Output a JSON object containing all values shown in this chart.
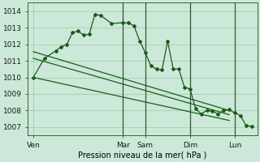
{
  "bg_color": "#cce8d8",
  "grid_color": "#99ccaa",
  "line_color": "#1a5c1a",
  "ylabel_ticks": [
    1007,
    1008,
    1009,
    1010,
    1011,
    1012,
    1013,
    1014
  ],
  "xlabel": "Pression niveau de la mer( hPa )",
  "day_labels": [
    "Ven",
    "Mar",
    "Sam",
    "Dim",
    "Lun"
  ],
  "day_positions": [
    0,
    48,
    60,
    84,
    108
  ],
  "vline_positions": [
    48,
    60,
    84,
    108
  ],
  "series1_x": [
    0,
    6,
    12,
    15,
    18,
    21,
    24,
    27,
    30,
    33,
    36,
    42,
    48,
    51,
    54,
    57,
    60,
    63,
    66,
    69,
    72,
    75,
    78,
    81,
    84,
    87,
    90,
    93,
    96,
    99,
    102,
    105,
    108,
    111,
    114,
    117
  ],
  "series1_y": [
    1010.0,
    1011.15,
    1011.6,
    1011.85,
    1012.0,
    1012.7,
    1012.8,
    1012.55,
    1012.6,
    1013.8,
    1013.75,
    1013.25,
    1013.3,
    1013.3,
    1013.1,
    1012.2,
    1011.5,
    1010.7,
    1010.5,
    1010.45,
    1012.2,
    1010.5,
    1010.5,
    1009.4,
    1009.3,
    1008.1,
    1007.8,
    1008.0,
    1007.95,
    1007.8,
    1008.0,
    1008.05,
    1007.85,
    1007.7,
    1007.1,
    1007.05
  ],
  "trend1_x": [
    0,
    105
  ],
  "trend1_y": [
    1011.55,
    1008.0
  ],
  "trend2_x": [
    0,
    105
  ],
  "trend2_y": [
    1011.15,
    1007.75
  ],
  "trend3_x": [
    0,
    105
  ],
  "trend3_y": [
    1010.0,
    1007.4
  ],
  "xlim": [
    -3,
    120
  ],
  "ylim": [
    1006.5,
    1014.5
  ]
}
